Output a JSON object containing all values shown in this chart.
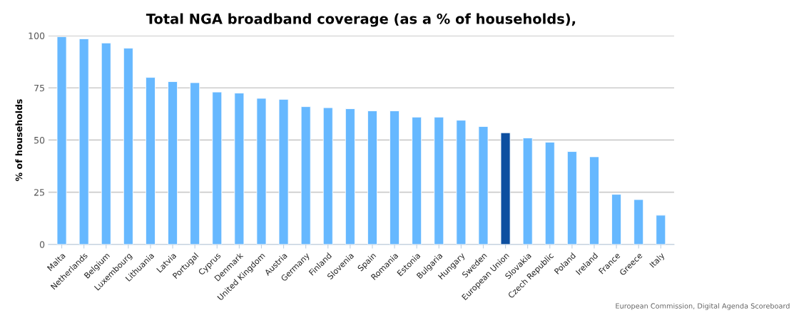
{
  "chart_data": {
    "type": "bar",
    "title": "Total NGA broadband coverage (as a % of households),",
    "ylabel": "% of households",
    "categories": [
      "Malta",
      "Netherlands",
      "Belgium",
      "Luxembourg",
      "Lithuania",
      "Latvia",
      "Portugal",
      "Cyprus",
      "Denmark",
      "United Kingdom",
      "Austria",
      "Germany",
      "Finland",
      "Slovenia",
      "Spain",
      "Romania",
      "Estonia",
      "Bulgaria",
      "Hungary",
      "Sweden",
      "European Union",
      "Slovakia",
      "Czech Republic",
      "Poland",
      "Ireland",
      "France",
      "Greece",
      "Italy"
    ],
    "values": [
      99.5,
      98.5,
      96.5,
      94,
      80,
      78,
      77.5,
      73,
      72.5,
      70,
      69.5,
      66,
      65.5,
      65,
      64,
      64,
      61,
      61,
      59.5,
      56.5,
      53.5,
      51,
      49,
      44.5,
      42,
      24,
      21.5,
      14
    ],
    "colors": [
      "#66b8ff",
      "#66b8ff",
      "#66b8ff",
      "#66b8ff",
      "#66b8ff",
      "#66b8ff",
      "#66b8ff",
      "#66b8ff",
      "#66b8ff",
      "#66b8ff",
      "#66b8ff",
      "#66b8ff",
      "#66b8ff",
      "#66b8ff",
      "#66b8ff",
      "#66b8ff",
      "#66b8ff",
      "#66b8ff",
      "#66b8ff",
      "#66b8ff",
      "#0d4fa0",
      "#66b8ff",
      "#66b8ff",
      "#66b8ff",
      "#66b8ff",
      "#66b8ff",
      "#66b8ff",
      "#66b8ff"
    ],
    "ylim": [
      0,
      100
    ],
    "yticks": [
      0,
      25,
      50,
      75,
      100
    ],
    "grid": "y",
    "annotations": [
      "European Commission, Digital Agenda Scoreboard"
    ]
  }
}
